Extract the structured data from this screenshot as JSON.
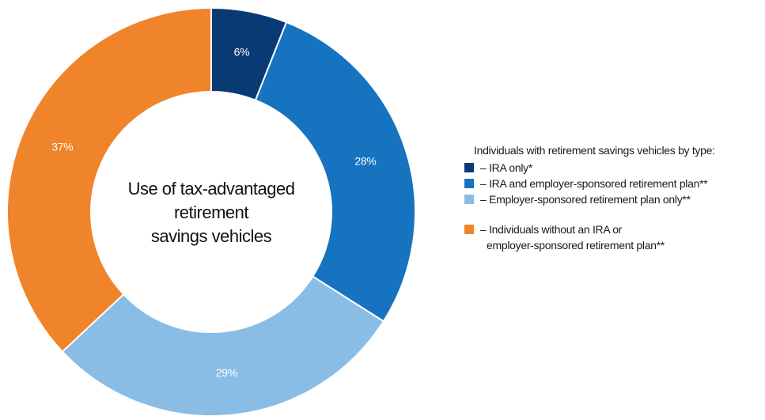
{
  "chart_data": {
    "type": "pie",
    "donut": true,
    "center_text": [
      "Use of tax-advantaged",
      "retirement",
      "savings vehicles"
    ],
    "slices": [
      {
        "label": "IRA only*",
        "value": 6,
        "display": "6%",
        "color": "#0a3a73"
      },
      {
        "label": "IRA and employer-sponsored retirement plan**",
        "value": 28,
        "display": "28%",
        "color": "#1673bf"
      },
      {
        "label": "Employer-sponsored retirement plan only**",
        "value": 29,
        "display": "29%",
        "color": "#89bde6"
      },
      {
        "label": "Individuals without an IRA or employer-sponsored retirement plan**",
        "value": 37,
        "display": "37%",
        "color": "#f0842a"
      }
    ],
    "legend": {
      "title": "Individuals with retirement savings vehicles by type:",
      "placement": "right",
      "items": [
        {
          "prefix": "–",
          "text": "IRA only*",
          "color": "#0a3a73"
        },
        {
          "prefix": "–",
          "text": "IRA and employer-sponsored retirement plan**",
          "color": "#1673bf"
        },
        {
          "prefix": "–",
          "text": "Employer-sponsored retirement plan only**",
          "color": "#89bde6"
        },
        {
          "prefix": "–",
          "text": "Individuals without an IRA or",
          "text2": "employer-sponsored retirement plan**",
          "color": "#f0842a"
        }
      ]
    }
  }
}
